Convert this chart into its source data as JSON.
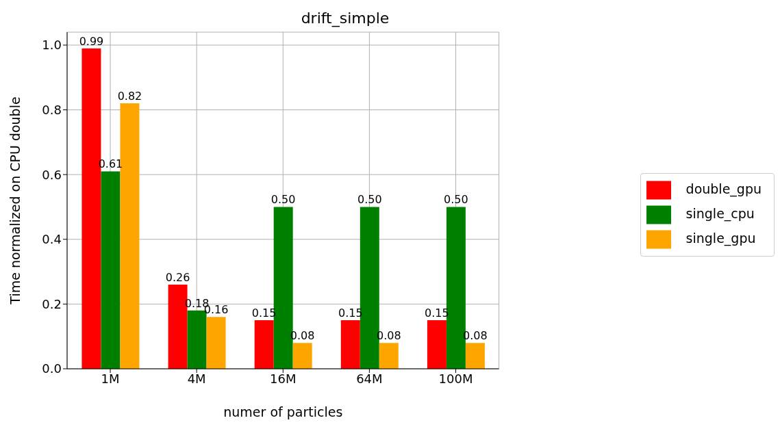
{
  "chart_data": {
    "type": "bar",
    "title": "drift_simple",
    "xlabel": "numer of particles",
    "ylabel": "Time normalized on CPU double",
    "categories": [
      "1M",
      "4M",
      "16M",
      "64M",
      "100M"
    ],
    "series": [
      {
        "name": "double_gpu",
        "color": "#ff0000",
        "values": [
          0.99,
          0.26,
          0.15,
          0.15,
          0.15
        ],
        "value_labels": [
          "0.99",
          "0.26",
          "0.15",
          "0.15",
          "0.15"
        ]
      },
      {
        "name": "single_cpu",
        "color": "#008000",
        "values": [
          0.61,
          0.18,
          0.5,
          0.5,
          0.5
        ],
        "value_labels": [
          "0.61",
          "0.18",
          "0.50",
          "0.50",
          "0.50"
        ]
      },
      {
        "name": "single_gpu",
        "color": "#ffa500",
        "values": [
          0.82,
          0.16,
          0.08,
          0.08,
          0.08
        ],
        "value_labels": [
          "0.82",
          "0.16",
          "0.08",
          "0.08",
          "0.08"
        ]
      }
    ],
    "ylim": [
      0,
      1.04
    ],
    "yticks": [
      {
        "value": 0,
        "label": "0.0"
      },
      0.2,
      0.4,
      0.6,
      0.8,
      {
        "value": 1,
        "label": "1.0"
      }
    ],
    "grid": true,
    "legend": "right"
  }
}
